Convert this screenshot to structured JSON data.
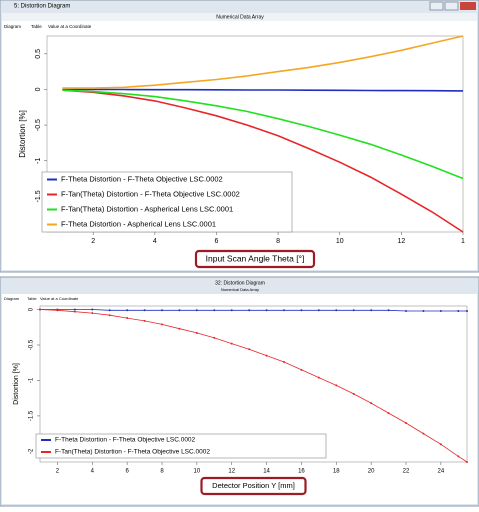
{
  "windows": [
    {
      "title": "5: Distortion Diagram",
      "subtitle": "Numerical Data Array",
      "tabs": [
        "Diagram",
        "Table",
        "Value at a Coordinate"
      ]
    },
    {
      "title": "32: Distortion Diagram",
      "subtitle": "Numerical Data Array",
      "tabs": [
        "Diagram",
        "Table",
        "Value at a Coordinate"
      ]
    }
  ],
  "chart_data": [
    {
      "type": "line",
      "x_label": "Input Scan Angle Theta [°]",
      "y_label": "Distortion [%]",
      "x": [
        1,
        2,
        3,
        4,
        5,
        6,
        7,
        8,
        9,
        10,
        11,
        12,
        13,
        14
      ],
      "xlim": [
        0.5,
        14
      ],
      "ylim": [
        -2,
        0.75
      ],
      "xticks": [
        2,
        4,
        6,
        8,
        10,
        12,
        {
          "value": 14,
          "label": "1"
        }
      ],
      "yticks": [
        -1.5,
        -1,
        -0.5,
        0,
        0.5
      ],
      "markers": false,
      "legend": "lower left",
      "series": [
        {
          "name": "F-Theta Distortion - F-Theta Objective LSC.0002",
          "color": "#1f2fbf",
          "values": [
            0,
            0,
            0,
            -0.003,
            -0.004,
            -0.005,
            -0.007,
            -0.008,
            -0.01,
            -0.012,
            -0.014,
            -0.016,
            -0.018,
            -0.02
          ]
        },
        {
          "name": "F-Tan(Theta) Distortion - F-Theta Objective LSC.0002",
          "color": "#e8262a",
          "values": [
            -0.01,
            -0.04,
            -0.09,
            -0.16,
            -0.26,
            -0.37,
            -0.5,
            -0.65,
            -0.83,
            -1.02,
            -1.23,
            -1.47,
            -1.72,
            -2
          ]
        },
        {
          "name": "F-Tan(Theta) Distortion - Aspherical Lens LSC.0001",
          "color": "#22e01f",
          "values": [
            -0.01,
            -0.03,
            -0.06,
            -0.1,
            -0.16,
            -0.23,
            -0.31,
            -0.41,
            -0.52,
            -0.64,
            -0.77,
            -0.92,
            -1.08,
            -1.25
          ]
        },
        {
          "name": "F-Theta Distortion - Aspherical Lens LSC.0001",
          "color": "#f5a623",
          "values": [
            0.02,
            0.02,
            0.03,
            0.06,
            0.1,
            0.14,
            0.19,
            0.25,
            0.31,
            0.38,
            0.46,
            0.55,
            0.65,
            0.75
          ]
        }
      ]
    },
    {
      "type": "line",
      "x_label": "Detector Position Y [mm]",
      "y_label": "Distortion [%]",
      "x": [
        1,
        2,
        3,
        4,
        5,
        6,
        7,
        8,
        9,
        10,
        11,
        12,
        13,
        14,
        15,
        16,
        17,
        18,
        19,
        20,
        21,
        22,
        23,
        24,
        25,
        25.5
      ],
      "xlim": [
        1,
        25.5
      ],
      "ylim": [
        -2.15,
        0.05
      ],
      "xticks": [
        2,
        4,
        6,
        8,
        10,
        12,
        14,
        16,
        18,
        20,
        22,
        24
      ],
      "yticks": [
        -2,
        -1.5,
        -1,
        -0.5,
        0
      ],
      "markers": true,
      "legend": "lower left",
      "series": [
        {
          "name": "F-Theta Distortion - F-Theta Objective LSC.0002",
          "color": "#1f2fbf",
          "values": [
            0,
            0,
            0,
            0,
            -0.01,
            -0.01,
            -0.01,
            -0.01,
            -0.01,
            -0.01,
            -0.01,
            -0.01,
            -0.01,
            -0.01,
            -0.01,
            -0.01,
            -0.01,
            -0.01,
            -0.01,
            -0.01,
            -0.01,
            -0.02,
            -0.02,
            -0.02,
            -0.02,
            -0.02
          ]
        },
        {
          "name": "F-Tan(Theta) Distortion - F-Theta Objective LSC.0002",
          "color": "#e8262a",
          "values": [
            0,
            -0.01,
            -0.03,
            -0.05,
            -0.08,
            -0.12,
            -0.16,
            -0.21,
            -0.27,
            -0.33,
            -0.4,
            -0.48,
            -0.56,
            -0.65,
            -0.74,
            -0.85,
            -0.96,
            -1.07,
            -1.19,
            -1.32,
            -1.46,
            -1.6,
            -1.75,
            -1.9,
            -2.07,
            -2.15
          ]
        }
      ]
    }
  ]
}
